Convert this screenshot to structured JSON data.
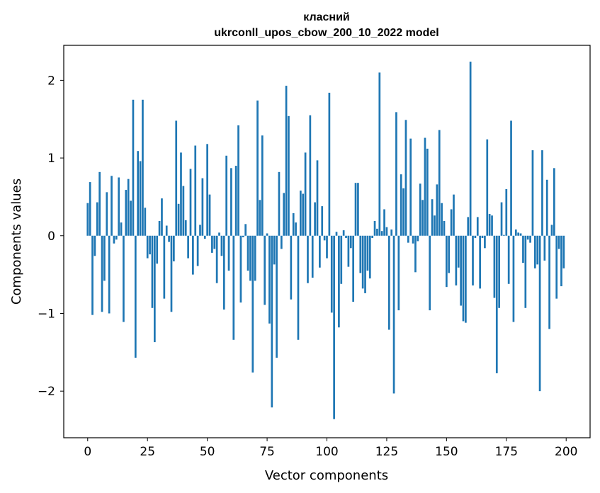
{
  "chart_data": {
    "type": "bar",
    "title": "класний",
    "subtitle": "ukrconll_upos_cbow_200_10_2022 model",
    "xlabel": "Vector components",
    "ylabel": "Components values",
    "xlim": [
      -10,
      210
    ],
    "ylim": [
      -2.6,
      2.45
    ],
    "xticks": [
      0,
      25,
      50,
      75,
      100,
      125,
      150,
      175,
      200
    ],
    "xtick_labels": [
      "0",
      "25",
      "50",
      "75",
      "100",
      "125",
      "150",
      "175",
      "200"
    ],
    "yticks": [
      -2,
      -1,
      0,
      1,
      2
    ],
    "ytick_labels": [
      "−2",
      "−1",
      "0",
      "1",
      "2"
    ],
    "grid": false,
    "legend": "none",
    "bar_color": "#1f77b4",
    "x": [
      0,
      1,
      2,
      3,
      4,
      5,
      6,
      7,
      8,
      9,
      10,
      11,
      12,
      13,
      14,
      15,
      16,
      17,
      18,
      19,
      20,
      21,
      22,
      23,
      24,
      25,
      26,
      27,
      28,
      29,
      30,
      31,
      32,
      33,
      34,
      35,
      36,
      37,
      38,
      39,
      40,
      41,
      42,
      43,
      44,
      45,
      46,
      47,
      48,
      49,
      50,
      51,
      52,
      53,
      54,
      55,
      56,
      57,
      58,
      59,
      60,
      61,
      62,
      63,
      64,
      65,
      66,
      67,
      68,
      69,
      70,
      71,
      72,
      73,
      74,
      75,
      76,
      77,
      78,
      79,
      80,
      81,
      82,
      83,
      84,
      85,
      86,
      87,
      88,
      89,
      90,
      91,
      92,
      93,
      94,
      95,
      96,
      97,
      98,
      99,
      100,
      101,
      102,
      103,
      104,
      105,
      106,
      107,
      108,
      109,
      110,
      111,
      112,
      113,
      114,
      115,
      116,
      117,
      118,
      119,
      120,
      121,
      122,
      123,
      124,
      125,
      126,
      127,
      128,
      129,
      130,
      131,
      132,
      133,
      134,
      135,
      136,
      137,
      138,
      139,
      140,
      141,
      142,
      143,
      144,
      145,
      146,
      147,
      148,
      149,
      150,
      151,
      152,
      153,
      154,
      155,
      156,
      157,
      158,
      159,
      160,
      161,
      162,
      163,
      164,
      165,
      166,
      167,
      168,
      169,
      170,
      171,
      172,
      173,
      174,
      175,
      176,
      177,
      178,
      179,
      180,
      181,
      182,
      183,
      184,
      185,
      186,
      187,
      188,
      189,
      190,
      191,
      192,
      193,
      194,
      195,
      196,
      197,
      198,
      199
    ],
    "values": [
      0.42,
      0.69,
      -1.02,
      -0.26,
      0.43,
      0.82,
      -0.98,
      -0.58,
      0.56,
      -1.0,
      0.77,
      -0.1,
      -0.05,
      0.75,
      0.17,
      -1.11,
      0.59,
      0.73,
      0.45,
      1.75,
      -1.57,
      1.09,
      0.96,
      1.75,
      0.36,
      -0.29,
      -0.24,
      -0.93,
      -1.37,
      -0.36,
      0.19,
      0.48,
      -0.81,
      0.13,
      -0.08,
      -0.98,
      -0.33,
      1.48,
      0.41,
      1.07,
      0.64,
      0.2,
      -0.29,
      0.86,
      -0.5,
      1.16,
      -0.39,
      0.14,
      0.74,
      -0.04,
      1.18,
      0.53,
      -0.22,
      -0.17,
      -0.61,
      0.04,
      -0.26,
      -0.95,
      1.03,
      -0.45,
      0.87,
      -1.34,
      0.9,
      1.42,
      -0.86,
      -0.02,
      0.15,
      -0.45,
      -0.58,
      -1.76,
      -0.58,
      1.74,
      0.46,
      1.29,
      -0.89,
      0.03,
      -1.13,
      -2.21,
      -0.37,
      -1.57,
      0.82,
      -0.17,
      0.55,
      1.93,
      1.54,
      -0.82,
      0.29,
      0.17,
      -1.34,
      0.58,
      0.54,
      1.07,
      -0.61,
      1.55,
      -0.54,
      0.43,
      0.97,
      -0.41,
      0.38,
      -0.06,
      -0.29,
      1.84,
      -0.99,
      -2.36,
      0.05,
      -1.18,
      -0.62,
      0.07,
      -0.03,
      -0.4,
      -0.16,
      -0.85,
      0.68,
      0.68,
      -0.48,
      -0.68,
      -0.74,
      -0.45,
      -0.55,
      -0.03,
      0.19,
      0.09,
      2.1,
      0.06,
      0.34,
      0.11,
      -1.21,
      0.08,
      -2.03,
      1.59,
      -0.96,
      0.79,
      0.61,
      1.49,
      -0.09,
      1.25,
      -0.1,
      -0.47,
      -0.07,
      0.67,
      0.46,
      1.26,
      1.12,
      -0.96,
      0.47,
      0.26,
      0.66,
      1.36,
      0.42,
      0.19,
      -0.66,
      -0.48,
      0.34,
      0.53,
      -0.64,
      -0.41,
      -0.9,
      -1.1,
      -1.12,
      0.24,
      2.24,
      -0.64,
      -0.03,
      0.24,
      -0.68,
      -0.03,
      -0.16,
      1.24,
      0.28,
      0.26,
      -0.8,
      -1.77,
      -0.93,
      0.43,
      0.01,
      0.6,
      -0.62,
      1.48,
      -1.11,
      0.08,
      0.04,
      0.03,
      -0.35,
      -0.93,
      -0.05,
      -0.09,
      1.1,
      -0.42,
      -0.37,
      -2.0,
      1.1,
      -0.32,
      0.72,
      -1.2,
      0.14,
      0.87,
      -0.81,
      -0.17,
      -0.65,
      -0.42
    ]
  }
}
